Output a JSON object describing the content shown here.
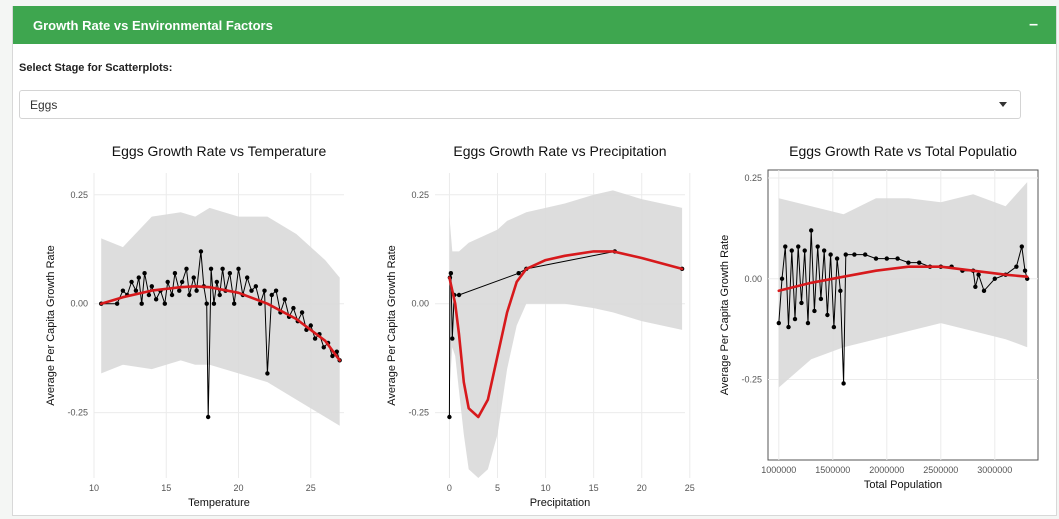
{
  "box": {
    "title": "Growth Rate vs Environmental Factors",
    "collapse_symbol": "–"
  },
  "stage_select": {
    "label": "Select Stage for Scatterplots:",
    "value": "Eggs"
  },
  "colors": {
    "header": "#3ea64f",
    "smooth_line": "#d7191c",
    "ribbon": "#d9d9d9",
    "points": "#000000"
  },
  "chart_data": [
    {
      "type": "line",
      "title": "Eggs Growth Rate vs Temperature",
      "xlabel": "Temperature",
      "ylabel": "Average Per Capita Growth Rate",
      "xlim": [
        10,
        27.3
      ],
      "ylim": [
        -0.4,
        0.3
      ],
      "xticks": [
        "10",
        "15",
        "20",
        "25"
      ],
      "yticks": [
        "-0.25",
        "0.00",
        "0.25"
      ],
      "series": [
        {
          "x": [
            10.5,
            11.6,
            12.0,
            12.3,
            12.6,
            12.9,
            13.1,
            13.3,
            13.5,
            13.8,
            14.0,
            14.3,
            14.6,
            14.9,
            15.1,
            15.4,
            15.6,
            15.9,
            16.1,
            16.4,
            16.6,
            16.9,
            17.1,
            17.4,
            17.6,
            17.8,
            17.9,
            18.1,
            18.3,
            18.5,
            18.7,
            18.9,
            19.1,
            19.4,
            19.7,
            20.0,
            20.3,
            20.6,
            20.9,
            21.2,
            21.5,
            21.8,
            22.0,
            22.3,
            22.6,
            22.9,
            23.2,
            23.5,
            23.8,
            24.1,
            24.4,
            24.7,
            25.0,
            25.3,
            25.6,
            25.9,
            26.2,
            26.5,
            26.8,
            27.0
          ],
          "y": [
            0.0,
            0.0,
            0.03,
            0.02,
            0.05,
            0.03,
            0.06,
            0.0,
            0.07,
            0.02,
            0.04,
            0.01,
            0.03,
            0.0,
            0.05,
            0.02,
            0.07,
            0.03,
            0.05,
            0.08,
            0.02,
            0.06,
            0.03,
            0.12,
            0.04,
            0.0,
            -0.26,
            0.08,
            0.0,
            0.05,
            0.02,
            0.08,
            0.03,
            0.07,
            0.0,
            0.08,
            0.02,
            0.06,
            0.03,
            0.04,
            0.0,
            0.03,
            -0.16,
            0.02,
            0.03,
            -0.02,
            0.01,
            -0.03,
            -0.01,
            -0.04,
            -0.02,
            -0.06,
            -0.05,
            -0.08,
            -0.07,
            -0.1,
            -0.09,
            -0.12,
            -0.11,
            -0.13
          ]
        }
      ],
      "smooth": {
        "x": [
          10.5,
          12,
          14,
          16,
          17,
          18,
          20,
          22,
          24,
          26,
          27
        ],
        "y": [
          0.0,
          0.015,
          0.03,
          0.038,
          0.04,
          0.038,
          0.025,
          0.0,
          -0.035,
          -0.085,
          -0.13
        ],
        "ribbon_upper": [
          0.15,
          0.13,
          0.2,
          0.21,
          0.2,
          0.22,
          0.2,
          0.2,
          0.16,
          0.1,
          0.06
        ],
        "ribbon_lower": [
          -0.16,
          -0.14,
          -0.15,
          -0.13,
          -0.14,
          -0.14,
          -0.16,
          -0.18,
          -0.22,
          -0.26,
          -0.28
        ]
      }
    },
    {
      "type": "line",
      "title": "Eggs Growth Rate vs Precipitation",
      "xlabel": "Precipitation",
      "ylabel": "Average Per Capita Growth Rate",
      "xlim": [
        -1.5,
        24.5
      ],
      "ylim": [
        -0.4,
        0.3
      ],
      "xticks": [
        "0",
        "5",
        "10",
        "15",
        "20",
        "25"
      ],
      "yticks": [
        "-0.25",
        "0.00",
        "0.25"
      ],
      "series": [
        {
          "x": [
            0.0,
            0.05,
            0.15,
            0.3,
            0.5,
            1.0,
            7.2,
            8.0,
            17.2,
            24.2
          ],
          "y": [
            -0.26,
            0.06,
            0.07,
            -0.08,
            0.02,
            0.02,
            0.07,
            0.08,
            0.12,
            0.08
          ]
        }
      ],
      "smooth": {
        "x": [
          0.0,
          0.3,
          0.6,
          1.0,
          1.5,
          2.0,
          3.0,
          4.0,
          5.0,
          6.0,
          7.0,
          8.0,
          10.0,
          12.0,
          15.0,
          17.0,
          20.0,
          24.2
        ],
        "y": [
          0.06,
          0.03,
          0.0,
          -0.07,
          -0.18,
          -0.24,
          -0.26,
          -0.22,
          -0.12,
          -0.02,
          0.05,
          0.08,
          0.1,
          0.11,
          0.12,
          0.12,
          0.105,
          0.08
        ],
        "ribbon_upper": [
          0.2,
          0.12,
          0.12,
          0.12,
          0.13,
          0.14,
          0.15,
          0.16,
          0.17,
          0.19,
          0.2,
          0.21,
          0.22,
          0.23,
          0.25,
          0.26,
          0.24,
          0.22
        ],
        "ribbon_lower": [
          -0.2,
          -0.1,
          -0.12,
          -0.2,
          -0.3,
          -0.38,
          -0.4,
          -0.38,
          -0.3,
          -0.15,
          -0.05,
          0.0,
          0.0,
          0.0,
          -0.01,
          -0.02,
          -0.04,
          -0.06
        ]
      }
    },
    {
      "type": "line",
      "title": "Eggs Growth Rate vs Total Populatio",
      "xlabel": "Total Population",
      "ylabel": "Average Per Capita Growth Rate",
      "xlim": [
        900000,
        3400000
      ],
      "ylim": [
        -0.45,
        0.27
      ],
      "xticks": [
        "1000000",
        "1500000",
        "2000000",
        "2500000",
        "3000000"
      ],
      "yticks": [
        "-0.25",
        "0.00",
        "0.25"
      ],
      "series": [
        {
          "x": [
            1000000,
            1030000,
            1060000,
            1090000,
            1120000,
            1150000,
            1180000,
            1210000,
            1240000,
            1270000,
            1300000,
            1330000,
            1360000,
            1390000,
            1420000,
            1450000,
            1480000,
            1510000,
            1540000,
            1570000,
            1600000,
            1620000,
            1700000,
            1800000,
            1900000,
            2000000,
            2100000,
            2200000,
            2300000,
            2400000,
            2500000,
            2600000,
            2700000,
            2800000,
            2820000,
            2850000,
            2900000,
            3000000,
            3100000,
            3200000,
            3250000,
            3280000,
            3300000
          ],
          "y": [
            -0.11,
            0.0,
            0.08,
            -0.12,
            0.07,
            -0.1,
            0.08,
            -0.06,
            0.07,
            -0.11,
            0.12,
            -0.08,
            0.08,
            -0.05,
            0.07,
            -0.09,
            0.06,
            -0.12,
            0.05,
            -0.03,
            -0.26,
            0.06,
            0.06,
            0.06,
            0.05,
            0.05,
            0.05,
            0.04,
            0.04,
            0.03,
            0.03,
            0.03,
            0.02,
            0.02,
            -0.02,
            0.01,
            -0.03,
            0.0,
            0.01,
            0.03,
            0.08,
            0.02,
            0.0
          ]
        }
      ],
      "smooth": {
        "x": [
          1000000,
          1300000,
          1600000,
          1900000,
          2200000,
          2500000,
          2800000,
          3100000,
          3300000
        ],
        "y": [
          -0.03,
          -0.01,
          0.005,
          0.02,
          0.03,
          0.03,
          0.02,
          0.01,
          0.005
        ],
        "ribbon_upper": [
          0.2,
          0.18,
          0.16,
          0.2,
          0.2,
          0.19,
          0.21,
          0.18,
          0.24
        ],
        "ribbon_lower": [
          -0.27,
          -0.2,
          -0.17,
          -0.15,
          -0.13,
          -0.11,
          -0.13,
          -0.15,
          -0.17
        ]
      }
    }
  ]
}
